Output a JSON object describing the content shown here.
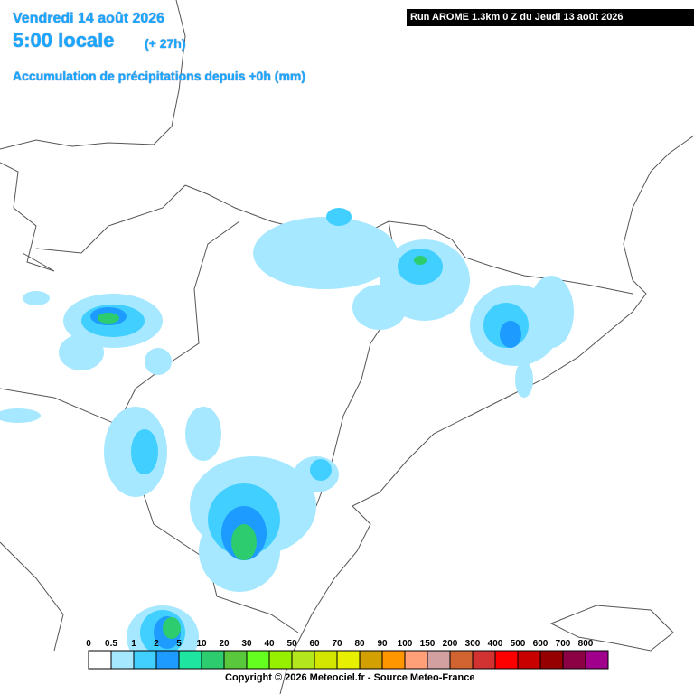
{
  "header": {
    "date": "Vendredi 14 août 2026",
    "time": "5:00 locale",
    "offset": "(+ 27h)",
    "subtitle": "Accumulation de précipitations depuis +0h (mm)",
    "run": "Run AROME 1.3km 0 Z du Jeudi 13 août 2026"
  },
  "legend": {
    "items": [
      {
        "label": "0",
        "color": "#ffffff"
      },
      {
        "label": "0.5",
        "color": "#a6e8ff"
      },
      {
        "label": "1",
        "color": "#40cfff"
      },
      {
        "label": "2",
        "color": "#1e9bff"
      },
      {
        "label": "5",
        "color": "#1ee6a0"
      },
      {
        "label": "10",
        "color": "#2dcc6e"
      },
      {
        "label": "20",
        "color": "#5ac83c"
      },
      {
        "label": "30",
        "color": "#64ff1e"
      },
      {
        "label": "40",
        "color": "#96f000"
      },
      {
        "label": "50",
        "color": "#b4e61e"
      },
      {
        "label": "60",
        "color": "#d2e600"
      },
      {
        "label": "70",
        "color": "#e6f000"
      },
      {
        "label": "80",
        "color": "#d2a000"
      },
      {
        "label": "90",
        "color": "#ff9600"
      },
      {
        "label": "100",
        "color": "#ffa078"
      },
      {
        "label": "150",
        "color": "#d2a0a0"
      },
      {
        "label": "200",
        "color": "#d26432"
      },
      {
        "label": "300",
        "color": "#d23232"
      },
      {
        "label": "400",
        "color": "#ff0000"
      },
      {
        "label": "500",
        "color": "#c80000"
      },
      {
        "label": "600",
        "color": "#960000"
      },
      {
        "label": "700",
        "color": "#8c0046"
      },
      {
        "label": "800",
        "color": "#a0008c"
      }
    ]
  },
  "footer": {
    "copyright": "Copyright © 2026 Meteociel.fr - Source Meteo-France"
  }
}
